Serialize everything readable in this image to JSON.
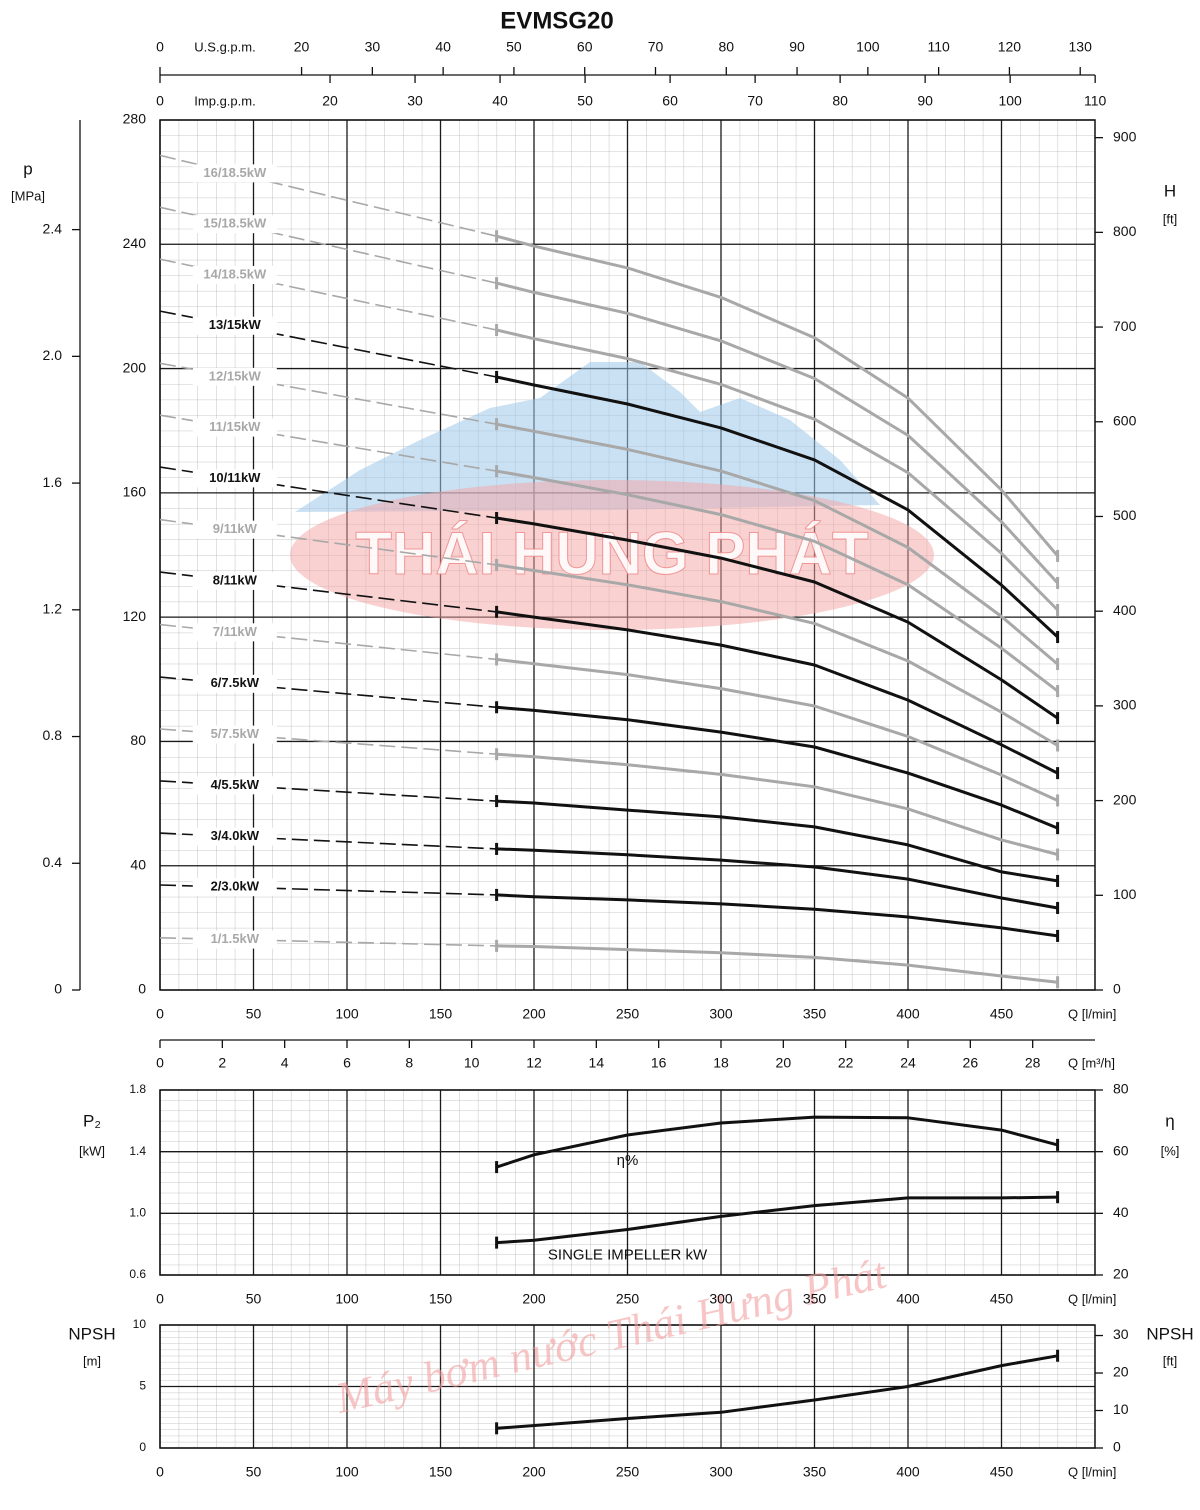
{
  "chart_data": [
    {
      "type": "line",
      "title": "EVMSG20",
      "xlabel": "Q [l/min]",
      "xlim": [
        0,
        500
      ],
      "xticks": [
        0,
        50,
        100,
        150,
        200,
        250,
        300,
        350,
        400,
        450
      ],
      "ylim": [
        0,
        280
      ],
      "yticks": [
        0,
        40,
        80,
        120,
        160,
        200,
        240,
        280
      ],
      "y2label": "H",
      "y2unit": "[ft]",
      "y2lim": [
        0,
        918.64
      ],
      "y2ticks": [
        0,
        100,
        200,
        300,
        400,
        500,
        600,
        700,
        800,
        900
      ],
      "p_axis": {
        "label": "p",
        "unit": "[MPa]",
        "lim": [
          0,
          2.746
        ],
        "ticks": [
          0,
          0.4,
          0.8,
          1.2,
          1.6,
          {
            "value": 2,
            "label": "2.0"
          },
          2.4
        ]
      },
      "top_axes": [
        {
          "label": "U.S.g.p.m.",
          "lim": [
            0,
            132.09
          ],
          "ticks": [
            0,
            20,
            30,
            40,
            50,
            60,
            70,
            80,
            90,
            100,
            110,
            120,
            130
          ]
        },
        {
          "label": "Imp.g.p.m.",
          "lim": [
            0,
            109.98
          ],
          "ticks": [
            0,
            20,
            30,
            40,
            50,
            60,
            70,
            80,
            90,
            100,
            110
          ]
        }
      ],
      "m3h_axis": {
        "label": "Q [m³/h]",
        "lim": [
          0,
          30
        ],
        "ticks": [
          0,
          2,
          4,
          6,
          8,
          10,
          12,
          14,
          16,
          18,
          20,
          22,
          24,
          26,
          28
        ]
      },
      "grid": true,
      "dashed_until": 180,
      "watermark": "THÁI HUNG PHÁT",
      "x": [
        0,
        180,
        200,
        250,
        300,
        350,
        400,
        450,
        480
      ],
      "series": [
        {
          "name": "16/18.5kW",
          "color": "#a8a8a8",
          "values": [
            268.6,
            242.6,
            239.4,
            232.4,
            222.9,
            209.9,
            190.5,
            160.9,
            139.7
          ]
        },
        {
          "name": "15/18.5kW",
          "color": "#a8a8a8",
          "values": [
            251.9,
            227.5,
            224.5,
            217.8,
            208.9,
            196.8,
            178.5,
            150.7,
            131
          ]
        },
        {
          "name": "14/18.5kW",
          "color": "#a8a8a8",
          "values": [
            235.2,
            212.4,
            209.6,
            203.2,
            194.9,
            183.7,
            166.5,
            140.5,
            122.3
          ]
        },
        {
          "name": "13/15kW",
          "color": "#111111",
          "values": [
            218.5,
            197.3,
            194.7,
            188.6,
            180.9,
            170.6,
            154.5,
            130.3,
            113.6
          ]
        },
        {
          "name": "12/15kW",
          "color": "#a8a8a8",
          "values": [
            201.7,
            182.1,
            179.8,
            174,
            167,
            157.5,
            142.4,
            120.2,
            104.9
          ]
        },
        {
          "name": "11/15kW",
          "color": "#a8a8a8",
          "values": [
            185,
            167,
            164.9,
            159.4,
            153,
            144.4,
            130.4,
            110,
            96.2
          ]
        },
        {
          "name": "10/11kW",
          "color": "#111111",
          "values": [
            168.3,
            151.9,
            150,
            144.8,
            139,
            131.3,
            118.4,
            99.8,
            87.5
          ]
        },
        {
          "name": "9/11kW",
          "color": "#a8a8a8",
          "values": [
            151.4,
            136.8,
            135,
            130.4,
            125,
            118,
            105.9,
            89.4,
            78.7
          ]
        },
        {
          "name": "8/11kW",
          "color": "#111111",
          "values": [
            134.5,
            121.7,
            120,
            115.9,
            111,
            104.6,
            93.3,
            78.9,
            69.8
          ]
        },
        {
          "name": "7/11kW",
          "color": "#a8a8a8",
          "values": [
            117.6,
            106.4,
            105,
            101.5,
            97,
            91.4,
            81.6,
            69.2,
            61
          ]
        },
        {
          "name": "6/7.5kW",
          "color": "#111111",
          "values": [
            100.7,
            91,
            90,
            87,
            83,
            78.2,
            69.8,
            59.5,
            52.1
          ]
        },
        {
          "name": "5/7.5kW",
          "color": "#a8a8a8",
          "values": [
            84,
            75.9,
            75.1,
            72.5,
            69.4,
            65.4,
            58.3,
            48.3,
            43.6
          ]
        },
        {
          "name": "4/5.5kW",
          "color": "#111111",
          "values": [
            67.3,
            60.8,
            60.2,
            57.9,
            55.7,
            52.5,
            46.7,
            38,
            35.1
          ]
        },
        {
          "name": "3/4.0kW",
          "color": "#111111",
          "values": [
            50.5,
            45.4,
            45,
            43.5,
            41.8,
            39.6,
            35.7,
            29.6,
            26.4
          ]
        },
        {
          "name": "2/3.0kW",
          "color": "#111111",
          "values": [
            33.8,
            30.6,
            30,
            29,
            27.7,
            26,
            23.5,
            20,
            17.4
          ]
        },
        {
          "name": "1/1.5kW",
          "color": "#a8a8a8",
          "values": [
            16.8,
            14.2,
            14,
            13,
            12,
            10.5,
            8,
            4.5,
            2.5
          ]
        }
      ]
    },
    {
      "type": "line",
      "xlabel": "Q [l/min]",
      "xlim": [
        0,
        500
      ],
      "xticks": [
        0,
        50,
        100,
        150,
        200,
        250,
        300,
        350,
        400,
        450
      ],
      "ylabel": "P₂",
      "yunit": "[kW]",
      "ylim": [
        0.6,
        1.8
      ],
      "yticks": [
        0.6,
        {
          "value": 1,
          "label": "1.0"
        },
        1.4,
        1.8
      ],
      "y2label": "η",
      "y2unit": "[%]",
      "y2lim": [
        20,
        80
      ],
      "y2ticks": [
        20,
        40,
        60,
        80
      ],
      "grid": true,
      "x": [
        180,
        200,
        250,
        300,
        350,
        400,
        450,
        480
      ],
      "series": [
        {
          "name": "η%",
          "color": "#111111",
          "axis": "y2",
          "values": [
            55,
            59,
            65.4,
            69.3,
            71.2,
            71,
            67,
            62.2
          ]
        },
        {
          "name": "SINGLE IMPELLER kW",
          "color": "#111111",
          "values": [
            0.81,
            0.825,
            0.895,
            0.98,
            1.05,
            1.1,
            1.1,
            1.105
          ]
        }
      ]
    },
    {
      "type": "line",
      "xlabel": "Q [l/min]",
      "xlim": [
        0,
        500
      ],
      "xticks": [
        0,
        50,
        100,
        150,
        200,
        250,
        300,
        350,
        400,
        450
      ],
      "ylabel": "NPSH",
      "yunit": "[m]",
      "ylim": [
        0,
        10
      ],
      "yticks": [
        0,
        5,
        10
      ],
      "y2label": "NPSH",
      "y2unit": "[ft]",
      "y2lim": [
        0,
        32.81
      ],
      "y2ticks": [
        0,
        10,
        20,
        30
      ],
      "grid": true,
      "watermark": "Máy bơm nước Thái Hưng Phát",
      "x": [
        180,
        250,
        300,
        350,
        400,
        450,
        480
      ],
      "series": [
        {
          "color": "#111111",
          "values": [
            1.6,
            2.4,
            2.9,
            3.9,
            5.0,
            6.7,
            7.5
          ]
        }
      ]
    }
  ]
}
